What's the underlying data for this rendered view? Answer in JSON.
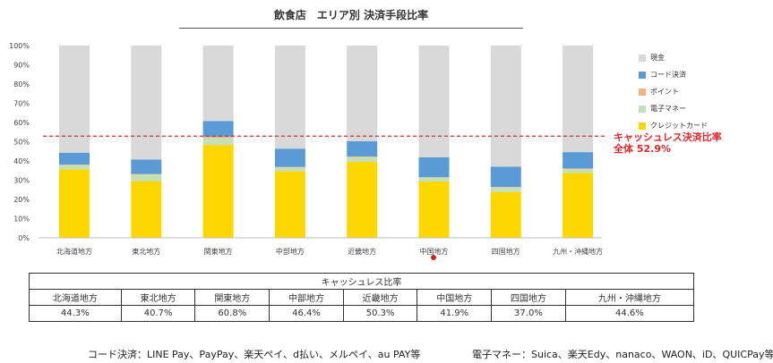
{
  "title": "飲食店　エリア別 決済手段比率",
  "chart_data": {
    "type": "bar",
    "stacked": true,
    "title": "飲食店　エリア別 決済手段比率",
    "categories": [
      "北海道地方",
      "東北地方",
      "関東地方",
      "中部地方",
      "近畿地方",
      "中国地方",
      "四国地方",
      "九州・沖縄地方"
    ],
    "y_ticks": [
      "0%",
      "10%",
      "20%",
      "30%",
      "40%",
      "50%",
      "60%",
      "70%",
      "80%",
      "90%",
      "100%"
    ],
    "ylim": [
      0,
      100
    ],
    "series": [
      {
        "name": "クレジットカード",
        "color": "#ffd700",
        "values": [
          35.6,
          29.5,
          48.3,
          34.6,
          39.5,
          29.3,
          23.8,
          33.8
        ]
      },
      {
        "name": "電子マネー",
        "color": "#c5e0b4",
        "values": [
          2.3,
          3.5,
          3.8,
          2.0,
          2.5,
          2.0,
          2.5,
          2.0
        ]
      },
      {
        "name": "ポイント",
        "color": "#f4b183",
        "values": [
          0.2,
          0.2,
          0.5,
          0.3,
          0.3,
          0.2,
          0.2,
          0.3
        ]
      },
      {
        "name": "コード決済",
        "color": "#5b9bd5",
        "values": [
          6.2,
          7.5,
          8.2,
          9.5,
          8.0,
          10.4,
          10.5,
          8.5
        ]
      },
      {
        "name": "現金",
        "color": "#d9d9d9",
        "values": [
          55.7,
          59.3,
          39.2,
          53.6,
          49.7,
          58.1,
          63.0,
          55.4
        ]
      }
    ],
    "legend_order": [
      "現金",
      "コード決済",
      "ポイント",
      "電子マネー",
      "クレジットカード"
    ],
    "reference_line": {
      "value": 52.9,
      "color": "#e0272b",
      "label_line1": "キャッシュレス決済比率",
      "label_line2": "全体 52.9%"
    }
  },
  "table": {
    "header": "キャッシュレス比率",
    "regions": [
      "北海道地方",
      "東北地方",
      "関東地方",
      "中部地方",
      "近畿地方",
      "中国地方",
      "四国地方",
      "九州・沖縄地方"
    ],
    "values": [
      "44.3%",
      "40.7%",
      "60.8%",
      "46.4%",
      "50.3%",
      "41.9%",
      "37.0%",
      "44.6%"
    ]
  },
  "footer": {
    "code_payment": "コード決済：LINE Pay、PayPay、楽天ペイ、d払い、メルペイ、au PAY等",
    "emoney": "電子マネー：Suica、楽天Edy、nanaco、WAON、iD、QUICPay等"
  }
}
